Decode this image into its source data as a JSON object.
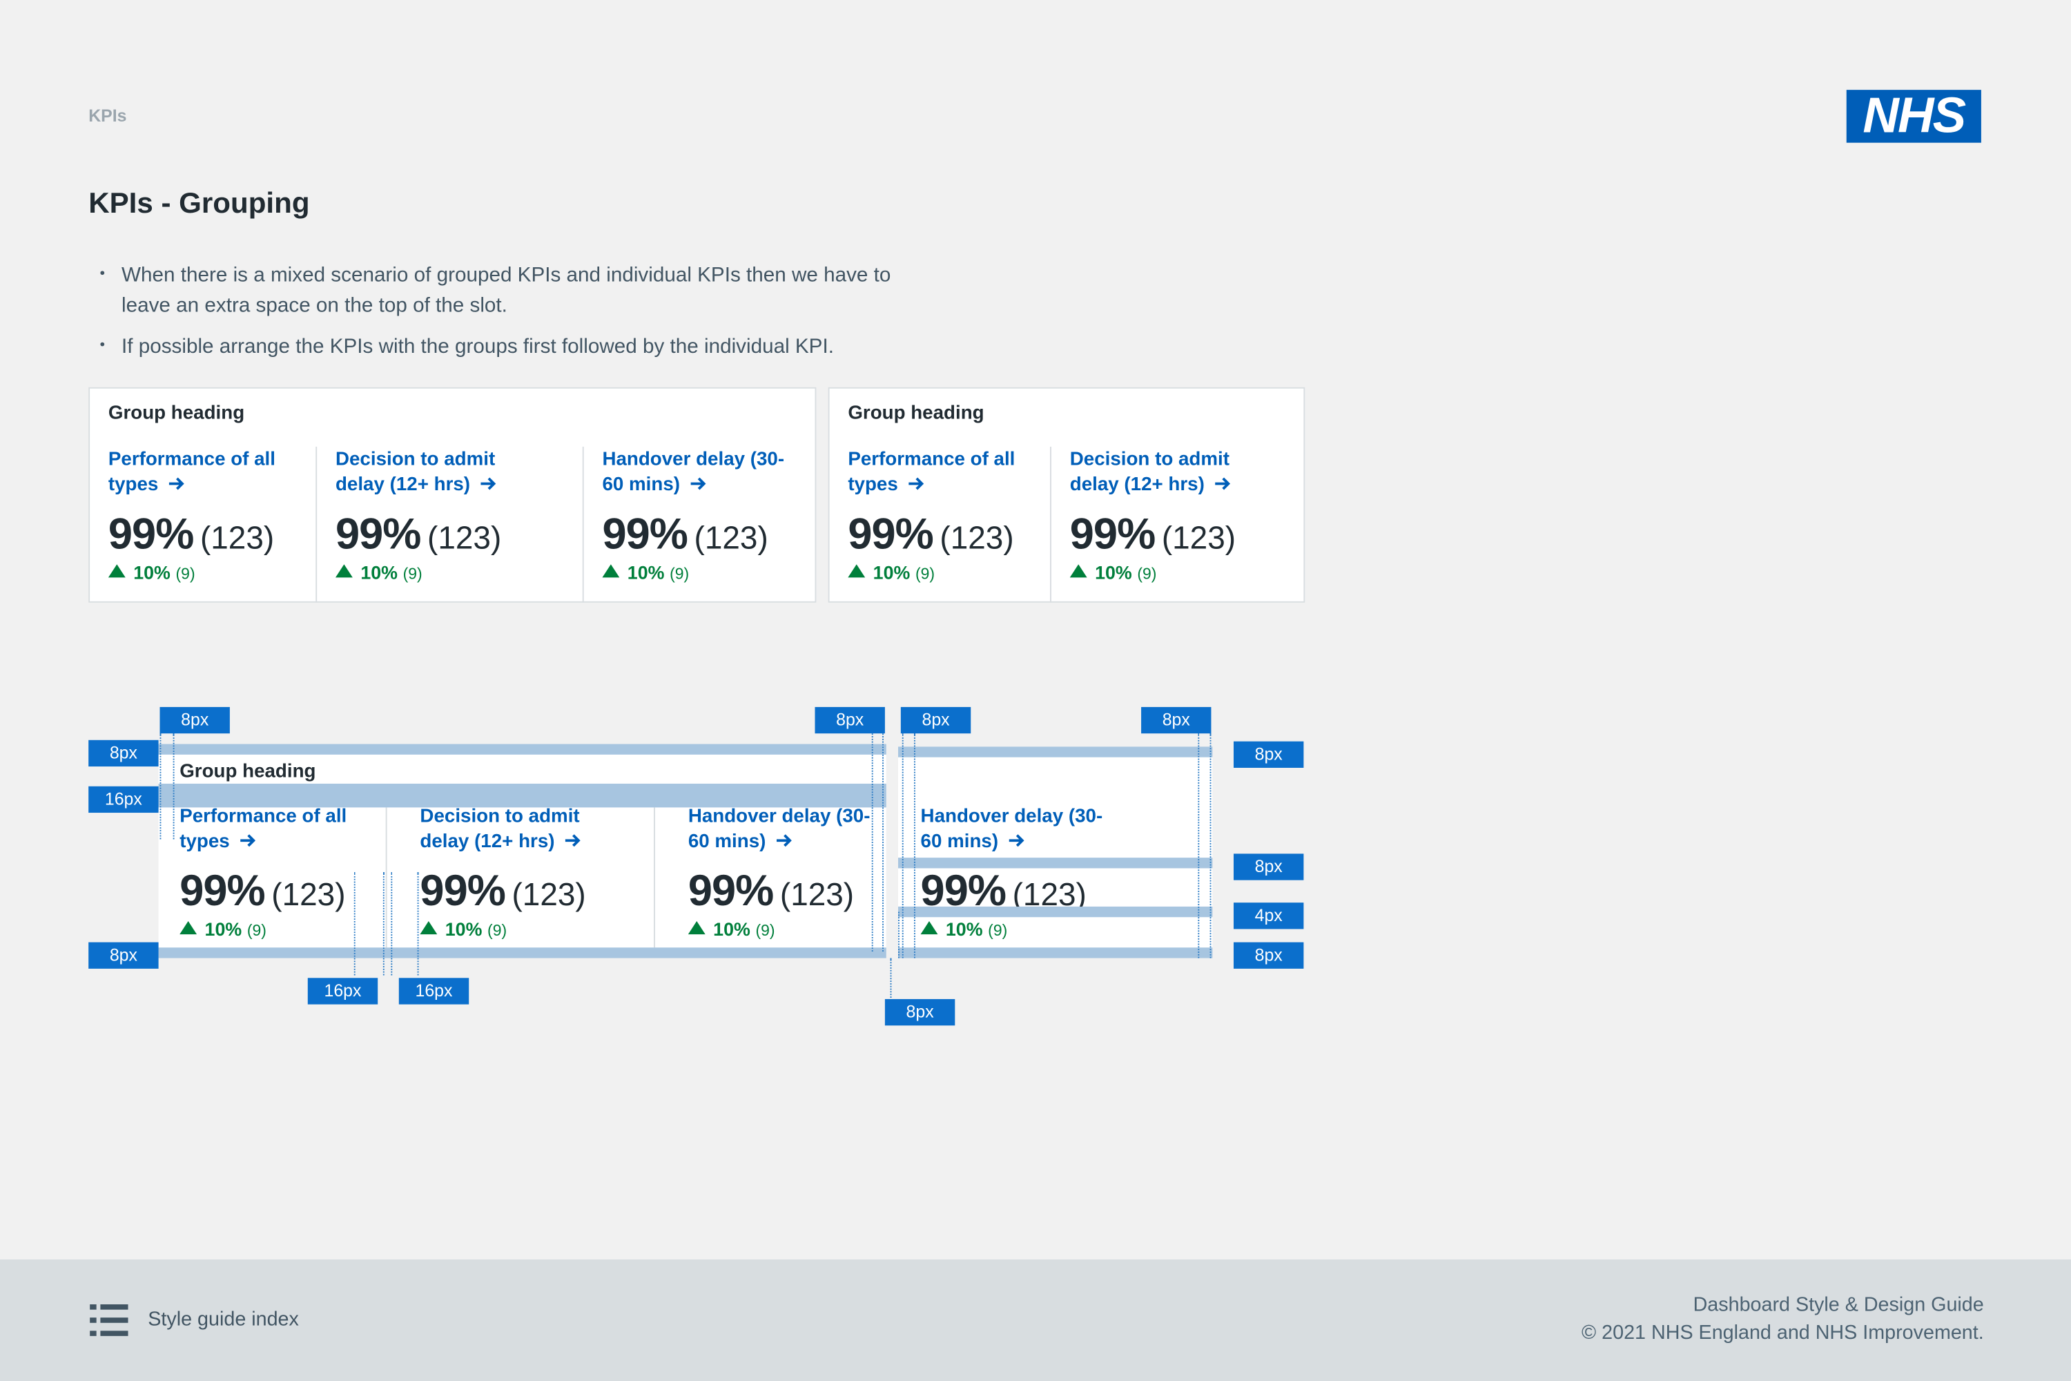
{
  "header": {
    "section": "KPIs",
    "logo": "NHS"
  },
  "title": "KPIs - Grouping",
  "bullets": [
    "When there is a mixed scenario of grouped KPIs and individual KPIs then we have to leave an extra space on the top of the slot.",
    "If possible arrange the KPIs with the groups first followed by the individual KPI."
  ],
  "examples": [
    {
      "heading": "Group heading",
      "kpis": [
        {
          "name": "Performance of all types",
          "value": "99%",
          "count": "(123)",
          "change": "10%",
          "change_count": "(9)"
        },
        {
          "name": "Decision to admit delay (12+ hrs)",
          "value": "99%",
          "count": "(123)",
          "change": "10%",
          "change_count": "(9)"
        },
        {
          "name": "Handover delay (30-60 mins)",
          "value": "99%",
          "count": "(123)",
          "change": "10%",
          "change_count": "(9)"
        }
      ]
    },
    {
      "heading": "Group heading",
      "kpis": [
        {
          "name": "Performance of all types",
          "value": "99%",
          "count": "(123)",
          "change": "10%",
          "change_count": "(9)"
        },
        {
          "name": "Decision to admit delay (12+ hrs)",
          "value": "99%",
          "count": "(123)",
          "change": "10%",
          "change_count": "(9)"
        }
      ]
    }
  ],
  "spec": {
    "heading": "Group heading",
    "kpis": [
      {
        "name": "Performance of all types",
        "value": "99%",
        "count": "(123)",
        "change": "10%",
        "change_count": "(9)"
      },
      {
        "name": "Decision to admit delay (12+ hrs)",
        "value": "99%",
        "count": "(123)",
        "change": "10%",
        "change_count": "(9)"
      },
      {
        "name": "Handover delay (30-60 mins)",
        "value": "99%",
        "count": "(123)",
        "change": "10%",
        "change_count": "(9)"
      },
      {
        "name": "Handover delay (30-60 mins)",
        "value": "99%",
        "count": "(123)",
        "change": "10%",
        "change_count": "(9)"
      }
    ],
    "annotations": [
      "8px",
      "8px",
      "8px",
      "8px",
      "8px",
      "16px",
      "8px",
      "8px",
      "8px",
      "4px",
      "8px",
      "16px",
      "16px",
      "8px"
    ]
  },
  "footer": {
    "link": "Style guide index",
    "guide": "Dashboard Style & Design Guide",
    "copyright": "© 2021 NHS England and NHS Improvement."
  }
}
